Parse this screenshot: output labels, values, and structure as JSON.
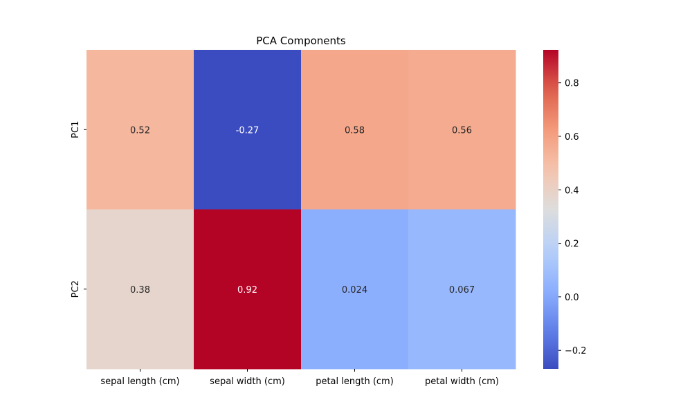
{
  "chart_data": {
    "type": "heatmap",
    "title": "PCA Components",
    "xlabel": "",
    "ylabel": "",
    "x_categories": [
      "sepal length (cm)",
      "sepal width (cm)",
      "petal length (cm)",
      "petal width (cm)"
    ],
    "y_categories": [
      "PC1",
      "PC2"
    ],
    "values": [
      [
        0.5211,
        -0.2693,
        0.5804,
        0.5649
      ],
      [
        0.3774,
        0.9233,
        0.0245,
        0.0669
      ]
    ],
    "annotations": [
      [
        "0.52",
        "-0.27",
        "0.58",
        "0.56"
      ],
      [
        "0.38",
        "0.92",
        "0.024",
        "0.067"
      ]
    ],
    "colormap": "coolwarm",
    "vmin": -0.2693,
    "vmax": 0.9233,
    "colorbar": {
      "ticks": [
        -0.2,
        0.0,
        0.2,
        0.4,
        0.6,
        0.8
      ],
      "tick_labels": [
        "−0.2",
        "0.0",
        "0.2",
        "0.4",
        "0.6",
        "0.8"
      ]
    },
    "grid": false,
    "legend": "none"
  }
}
